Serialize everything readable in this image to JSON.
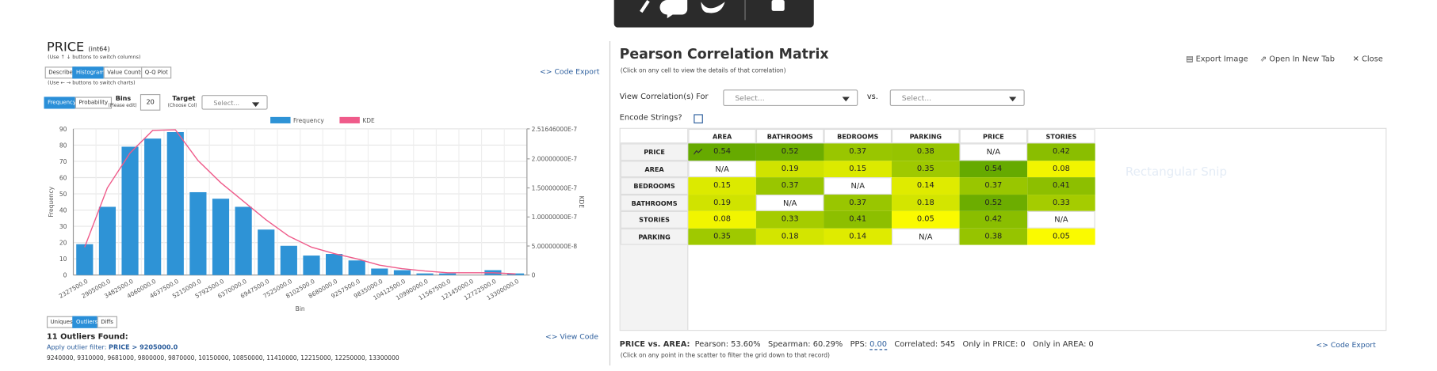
{
  "header": {
    "title": "PRICE",
    "dtype": "(int64)",
    "column_hint": "(Use ↑ ↓ buttons to switch columns)",
    "tabs": [
      "Describe",
      "Histogram",
      "Value Counts",
      "Q-Q Plot"
    ],
    "chart_hint": "(Use ← → buttons to switch charts)",
    "code_export": "Code Export"
  },
  "controls": {
    "modes": [
      "Frequency",
      "Probability"
    ],
    "bins_label": "Bins",
    "bins_hint": "(Please edit)",
    "bins": "20",
    "target_label": "Target",
    "target_hint": "(Choose Col)",
    "target_placeholder": "Select..."
  },
  "chart_data": {
    "type": "bar",
    "xlabel": "Bin",
    "ylabel": "Frequency",
    "y2label": "KDE",
    "categories": [
      "2327500.0",
      "2905000.0",
      "3482500.0",
      "4060000.0",
      "4637500.0",
      "5215000.0",
      "5792500.0",
      "6370000.0",
      "6947500.0",
      "7525000.0",
      "8102500.0",
      "8680000.0",
      "9257500.0",
      "9835000.0",
      "10412500.0",
      "10990000.0",
      "11567500.0",
      "12145000.0",
      "12722500.0",
      "13300000.0"
    ],
    "series": [
      {
        "name": "Frequency",
        "color": "#2e93d6",
        "values": [
          19,
          42,
          79,
          84,
          88,
          51,
          47,
          42,
          28,
          18,
          12,
          13,
          9,
          4,
          3,
          1,
          1,
          0,
          3,
          1
        ]
      },
      {
        "name": "KDE",
        "color": "#ef5b8a",
        "axis": "y2",
        "values": [
          4.8e-08,
          1.5e-07,
          2.1e-07,
          2.49e-07,
          2.5e-07,
          1.97e-07,
          1.59e-07,
          1.27e-07,
          9.5e-08,
          6.7e-08,
          4.8e-08,
          3.7e-08,
          2.8e-08,
          1.7e-08,
          1.1e-08,
          7e-09,
          4e-09,
          4e-09,
          4e-09,
          2e-09
        ]
      }
    ],
    "ylim": [
      0,
      90
    ],
    "yticks": [
      0,
      10,
      20,
      30,
      40,
      50,
      60,
      70,
      80,
      90
    ],
    "y2lim": [
      0,
      2.51646e-07
    ],
    "y2ticks": [
      0,
      {
        "value": 5e-08,
        "label": "5.00000000E-8"
      },
      {
        "value": 1e-07,
        "label": "1.00000000E-7"
      },
      {
        "value": 1.5e-07,
        "label": "1.50000000E-7"
      },
      {
        "value": 2e-07,
        "label": "2.00000000E-7"
      },
      {
        "value": 2.51646e-07,
        "label": "2.51646000E-7"
      }
    ],
    "grid": true,
    "legend": "top"
  },
  "outliers": {
    "tabs": [
      "Uniques",
      "Outliers",
      "Diffs"
    ],
    "view_code": "View Code",
    "heading": "11 Outliers Found:",
    "filter_label": "Apply outlier filter:",
    "filter": "PRICE > 9205000.0",
    "values": "9240000, 9310000, 9681000, 9800000, 9870000, 10150000, 10850000, 11410000, 12215000, 12250000, 13300000"
  },
  "correlation": {
    "title": "Pearson Correlation Matrix",
    "subtitle": "(Click on any cell to view the details of that correlation)",
    "actions": [
      "Export Image",
      "Open In New Tab",
      "Close"
    ],
    "view_for": "View Correlation(s) For",
    "select1": "Select...",
    "vs": "vs.",
    "select2": "Select...",
    "encode": "Encode Strings?",
    "snip": "Rectangular Snip",
    "columns": [
      "AREA",
      "BATHROOMS",
      "BEDROOMS",
      "PARKING",
      "PRICE",
      "STORIES"
    ],
    "rows": [
      {
        "label": "PRICE",
        "cells": [
          "0.54",
          "0.52",
          "0.37",
          "0.38",
          "N/A",
          "0.42"
        ]
      },
      {
        "label": "AREA",
        "cells": [
          "N/A",
          "0.19",
          "0.15",
          "0.35",
          "0.54",
          "0.08"
        ]
      },
      {
        "label": "BEDROOMS",
        "cells": [
          "0.15",
          "0.37",
          "N/A",
          "0.14",
          "0.37",
          "0.41"
        ]
      },
      {
        "label": "BATHROOMS",
        "cells": [
          "0.19",
          "N/A",
          "0.37",
          "0.18",
          "0.52",
          "0.33"
        ]
      },
      {
        "label": "STORIES",
        "cells": [
          "0.08",
          "0.33",
          "0.41",
          "0.05",
          "0.42",
          "N/A"
        ]
      },
      {
        "label": "PARKING",
        "cells": [
          "0.35",
          "0.18",
          "0.14",
          "N/A",
          "0.38",
          "0.05"
        ]
      }
    ],
    "color_scale": [
      "#fafa00",
      "#66aa00"
    ],
    "footer": {
      "pair": "PRICE vs. AREA:",
      "pearson_label": "Pearson:",
      "pearson": "53.60%",
      "spearman_label": "Spearman:",
      "spearman": "60.29%",
      "pps_label": "PPS:",
      "pps": "0.00",
      "correlated_label": "Correlated:",
      "correlated": "545",
      "only1_label": "Only in PRICE:",
      "only1": "0",
      "only2_label": "Only in AREA:",
      "only2": "0",
      "code_export": "Code Export",
      "hint": "(Click on any point in the scatter to filter the grid down to that record)"
    }
  }
}
